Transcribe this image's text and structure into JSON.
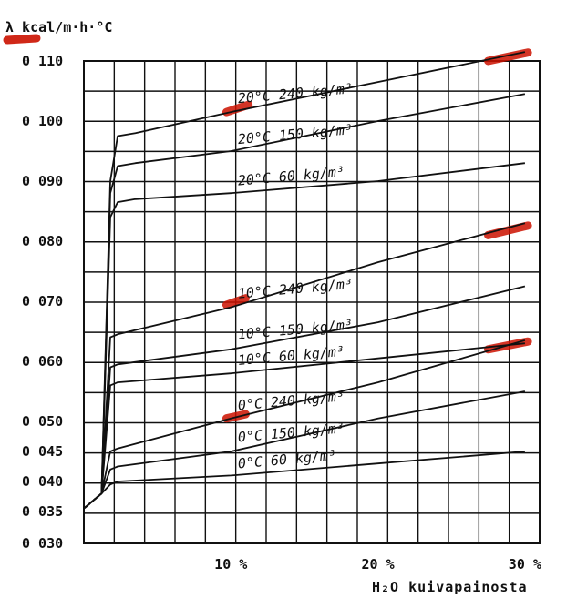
{
  "chart_data": {
    "type": "line",
    "ylabel": "λ kcal/m·h·°C",
    "xlabel": "H₂O kuivapainosta",
    "xlim": [
      0,
      31
    ],
    "ylim": [
      0.03,
      0.11
    ],
    "y_ticks": [
      {
        "value": 0.11,
        "label": "0 110"
      },
      {
        "value": 0.1,
        "label": "0 100"
      },
      {
        "value": 0.09,
        "label": "0 090"
      },
      {
        "value": 0.08,
        "label": "0 080"
      },
      {
        "value": 0.07,
        "label": "0 070"
      },
      {
        "value": 0.06,
        "label": "0 060"
      },
      {
        "value": 0.05,
        "label": "0 050"
      },
      {
        "value": 0.045,
        "label": "0 045"
      },
      {
        "value": 0.04,
        "label": "0 040"
      },
      {
        "value": 0.035,
        "label": "0 035"
      },
      {
        "value": 0.03,
        "label": "0 030"
      }
    ],
    "x_ticks": [
      {
        "value": 10,
        "label": "10 %"
      },
      {
        "value": 20,
        "label": "20 %"
      },
      {
        "value": 30,
        "label": "30 %"
      }
    ],
    "grid": true,
    "series": [
      {
        "name": "20°C 240 kg/m³",
        "points": [
          [
            0,
            0.0355
          ],
          [
            1.2,
            0.038
          ],
          [
            1.8,
            0.09
          ],
          [
            2.3,
            0.0975
          ],
          [
            3.5,
            0.098
          ],
          [
            10,
            0.1015
          ],
          [
            20,
            0.1065
          ],
          [
            30,
            0.1115
          ]
        ]
      },
      {
        "name": "20°C 150 kg/m³",
        "points": [
          [
            0,
            0.0355
          ],
          [
            1.2,
            0.038
          ],
          [
            1.8,
            0.088
          ],
          [
            2.3,
            0.0925
          ],
          [
            3.5,
            0.093
          ],
          [
            10,
            0.095
          ],
          [
            20,
            0.1
          ],
          [
            30,
            0.1045
          ]
        ]
      },
      {
        "name": "20°C 60 kg/m³",
        "points": [
          [
            0,
            0.0355
          ],
          [
            1.2,
            0.038
          ],
          [
            1.8,
            0.084
          ],
          [
            2.3,
            0.0865
          ],
          [
            3.5,
            0.087
          ],
          [
            10,
            0.088
          ],
          [
            20,
            0.09
          ],
          [
            30,
            0.093
          ]
        ]
      },
      {
        "name": "10°C 240 kg/m³",
        "points": [
          [
            0,
            0.0355
          ],
          [
            1.2,
            0.038
          ],
          [
            1.8,
            0.064
          ],
          [
            2.3,
            0.0645
          ],
          [
            10,
            0.069
          ],
          [
            20,
            0.0765
          ],
          [
            30,
            0.083
          ]
        ]
      },
      {
        "name": "10°C 150 kg/m³",
        "points": [
          [
            0,
            0.0355
          ],
          [
            1.2,
            0.038
          ],
          [
            1.8,
            0.059
          ],
          [
            2.3,
            0.0595
          ],
          [
            10,
            0.062
          ],
          [
            20,
            0.0665
          ],
          [
            30,
            0.0725
          ]
        ]
      },
      {
        "name": "10°C 60 kg/m³",
        "points": [
          [
            0,
            0.0355
          ],
          [
            1.2,
            0.038
          ],
          [
            1.8,
            0.056
          ],
          [
            2.3,
            0.0565
          ],
          [
            10,
            0.058
          ],
          [
            20,
            0.0605
          ],
          [
            30,
            0.063
          ]
        ]
      },
      {
        "name": "0°C 240 kg/m³",
        "points": [
          [
            0,
            0.0355
          ],
          [
            1.2,
            0.038
          ],
          [
            1.8,
            0.045
          ],
          [
            2.3,
            0.0455
          ],
          [
            10,
            0.0505
          ],
          [
            20,
            0.0565
          ],
          [
            30,
            0.0635
          ]
        ]
      },
      {
        "name": "0°C 150 kg/m³",
        "points": [
          [
            0,
            0.0355
          ],
          [
            1.2,
            0.038
          ],
          [
            1.8,
            0.042
          ],
          [
            2.3,
            0.0425
          ],
          [
            10,
            0.045
          ],
          [
            20,
            0.0505
          ],
          [
            30,
            0.055
          ]
        ]
      },
      {
        "name": "0°C 60 kg/m³",
        "points": [
          [
            0,
            0.0355
          ],
          [
            1.2,
            0.038
          ],
          [
            1.8,
            0.0395
          ],
          [
            2.3,
            0.04
          ],
          [
            10,
            0.041
          ],
          [
            20,
            0.043
          ],
          [
            30,
            0.045
          ]
        ]
      }
    ],
    "curve_labels": [
      {
        "text": "20°C  240 kg/m³",
        "x": 10.5,
        "y": 0.103
      },
      {
        "text": "20°C  150 kg/m³",
        "x": 10.5,
        "y": 0.0962
      },
      {
        "text": "20°C   60 kg/m³",
        "x": 10.5,
        "y": 0.0893
      },
      {
        "text": "10°C  240 kg/m³",
        "x": 10.5,
        "y": 0.0705
      },
      {
        "text": "10°C  150 kg/m³",
        "x": 10.5,
        "y": 0.0637
      },
      {
        "text": "10°C   60 kg/m³",
        "x": 10.5,
        "y": 0.0594
      },
      {
        "text": "0°C  240 kg/m³",
        "x": 10.5,
        "y": 0.0519
      },
      {
        "text": "0°C  150 kg/m³",
        "x": 10.5,
        "y": 0.0466
      },
      {
        "text": "0°C   60 kg/m³",
        "x": 10.5,
        "y": 0.0422
      }
    ],
    "highlight_color": "#cc1100",
    "highlights": [
      {
        "x0": 9.7,
        "x1": 11.2,
        "y0": 0.1015,
        "y1": 0.1027
      },
      {
        "x0": 27.5,
        "x1": 30.2,
        "y0": 0.11,
        "y1": 0.1114
      },
      {
        "x0": 9.7,
        "x1": 11.0,
        "y0": 0.0694,
        "y1": 0.0705
      },
      {
        "x0": 27.5,
        "x1": 30.2,
        "y0": 0.081,
        "y1": 0.0826
      },
      {
        "x0": 9.7,
        "x1": 11.0,
        "y0": 0.0505,
        "y1": 0.0512
      },
      {
        "x0": 27.5,
        "x1": 30.2,
        "y0": 0.062,
        "y1": 0.0633
      }
    ]
  }
}
